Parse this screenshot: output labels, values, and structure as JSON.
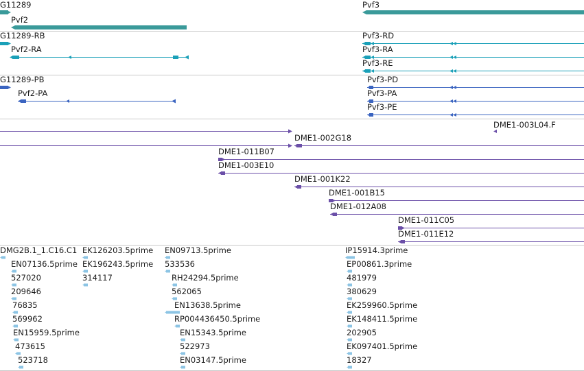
{
  "colors": {
    "gene": "#3a9a9a",
    "transcript": "#1aa0b8",
    "protein": "#3a64c0",
    "clone": "#6b4fa8",
    "est": "#8cc4e4",
    "divider": "#c8c8c8",
    "text": "#1a1a1a"
  },
  "tracks": {
    "gene": {
      "features": [
        {
          "id": "g-cg11289",
          "label": "G11289"
        },
        {
          "id": "g-pvf3",
          "label": "Pvf3"
        },
        {
          "id": "g-pvf2",
          "label": "Pvf2"
        }
      ]
    },
    "transcript": {
      "features": [
        {
          "id": "t-cg11289-rb",
          "label": "G11289-RB"
        },
        {
          "id": "t-pvf2-ra",
          "label": "Pvf2-RA"
        },
        {
          "id": "t-pvf3-rd",
          "label": "Pvf3-RD"
        },
        {
          "id": "t-pvf3-ra",
          "label": "Pvf3-RA"
        },
        {
          "id": "t-pvf3-re",
          "label": "Pvf3-RE"
        }
      ]
    },
    "protein": {
      "features": [
        {
          "id": "p-cg11289-pb",
          "label": "G11289-PB"
        },
        {
          "id": "p-pvf2-pa",
          "label": "Pvf2-PA"
        },
        {
          "id": "p-pvf3-pd",
          "label": "Pvf3-PD"
        },
        {
          "id": "p-pvf3-pa",
          "label": "Pvf3-PA"
        },
        {
          "id": "p-pvf3-pe",
          "label": "Pvf3-PE"
        }
      ]
    },
    "clone": {
      "features": [
        {
          "id": "c-003l04",
          "label": "DME1-003L04.F"
        },
        {
          "id": "c-002g18",
          "label": "DME1-002G18"
        },
        {
          "id": "c-011b07",
          "label": "DME1-011B07"
        },
        {
          "id": "c-003e10",
          "label": "DME1-003E10"
        },
        {
          "id": "c-001k22",
          "label": "DME1-001K22"
        },
        {
          "id": "c-001b15",
          "label": "DME1-001B15"
        },
        {
          "id": "c-012a08",
          "label": "DME1-012A08"
        },
        {
          "id": "c-011c05",
          "label": "DME1-011C05"
        },
        {
          "id": "c-011e12",
          "label": "DME1-011E12"
        }
      ]
    },
    "est": {
      "features": [
        {
          "id": "e-1",
          "label": "DMG2B.1_1.C16.C1"
        },
        {
          "id": "e-2",
          "label": "EN07136.5prime"
        },
        {
          "id": "e-3",
          "label": "527020"
        },
        {
          "id": "e-4",
          "label": "209646"
        },
        {
          "id": "e-5",
          "label": "76835"
        },
        {
          "id": "e-6",
          "label": "569962"
        },
        {
          "id": "e-7",
          "label": "EN15959.5prime"
        },
        {
          "id": "e-8",
          "label": "473615"
        },
        {
          "id": "e-9",
          "label": "523718"
        },
        {
          "id": "e-10",
          "label": "EK126203.5prime"
        },
        {
          "id": "e-11",
          "label": "EK196243.5prime"
        },
        {
          "id": "e-12",
          "label": "314117"
        },
        {
          "id": "e-13",
          "label": "EN09713.5prime"
        },
        {
          "id": "e-14",
          "label": "533536"
        },
        {
          "id": "e-15",
          "label": "RH24294.5prime"
        },
        {
          "id": "e-16",
          "label": "562065"
        },
        {
          "id": "e-17",
          "label": "EN13638.5prime"
        },
        {
          "id": "e-18",
          "label": "RP004436450.5prime"
        },
        {
          "id": "e-19",
          "label": "EN15343.5prime"
        },
        {
          "id": "e-20",
          "label": "522973"
        },
        {
          "id": "e-21",
          "label": "EN03147.5prime"
        },
        {
          "id": "e-22",
          "label": "IP15914.3prime"
        },
        {
          "id": "e-23",
          "label": "EP00861.3prime"
        },
        {
          "id": "e-24",
          "label": "481979"
        },
        {
          "id": "e-25",
          "label": "380629"
        },
        {
          "id": "e-26",
          "label": "EK259960.5prime"
        },
        {
          "id": "e-27",
          "label": "EK148411.5prime"
        },
        {
          "id": "e-28",
          "label": "202905"
        },
        {
          "id": "e-29",
          "label": "EK097401.5prime"
        },
        {
          "id": "e-30",
          "label": "18327"
        }
      ]
    }
  }
}
